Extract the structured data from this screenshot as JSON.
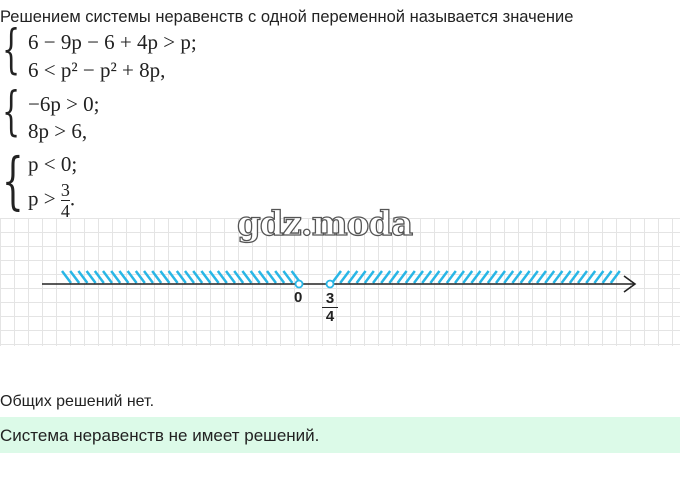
{
  "intro": "Решением системы неравенств с одной переменной называется значение",
  "systems": [
    {
      "lines": [
        "6 − 9p − 6 + 4p > p;",
        "6 < p² − p² + 8p,"
      ]
    },
    {
      "lines": [
        "−6p > 0;",
        "8p > 6,"
      ]
    },
    {
      "lines": [
        "p < 0;",
        "p > "
      ],
      "fraction": {
        "num": "3",
        "den": "4",
        "suffix": "."
      }
    }
  ],
  "watermark": "gdz.moda",
  "number_line": {
    "points": [
      {
        "label": "0",
        "open": true
      },
      {
        "label_num": "3",
        "label_den": "4",
        "open": true
      }
    ],
    "hatch_color": "#29b6e6",
    "left_region": "p < 0",
    "right_region": "p > 3/4"
  },
  "note": "Общих решений нет.",
  "answer": "Система неравенств не имеет решений.",
  "colors": {
    "answer_bg": "#dcfae8",
    "hatch": "#29b6e6"
  }
}
